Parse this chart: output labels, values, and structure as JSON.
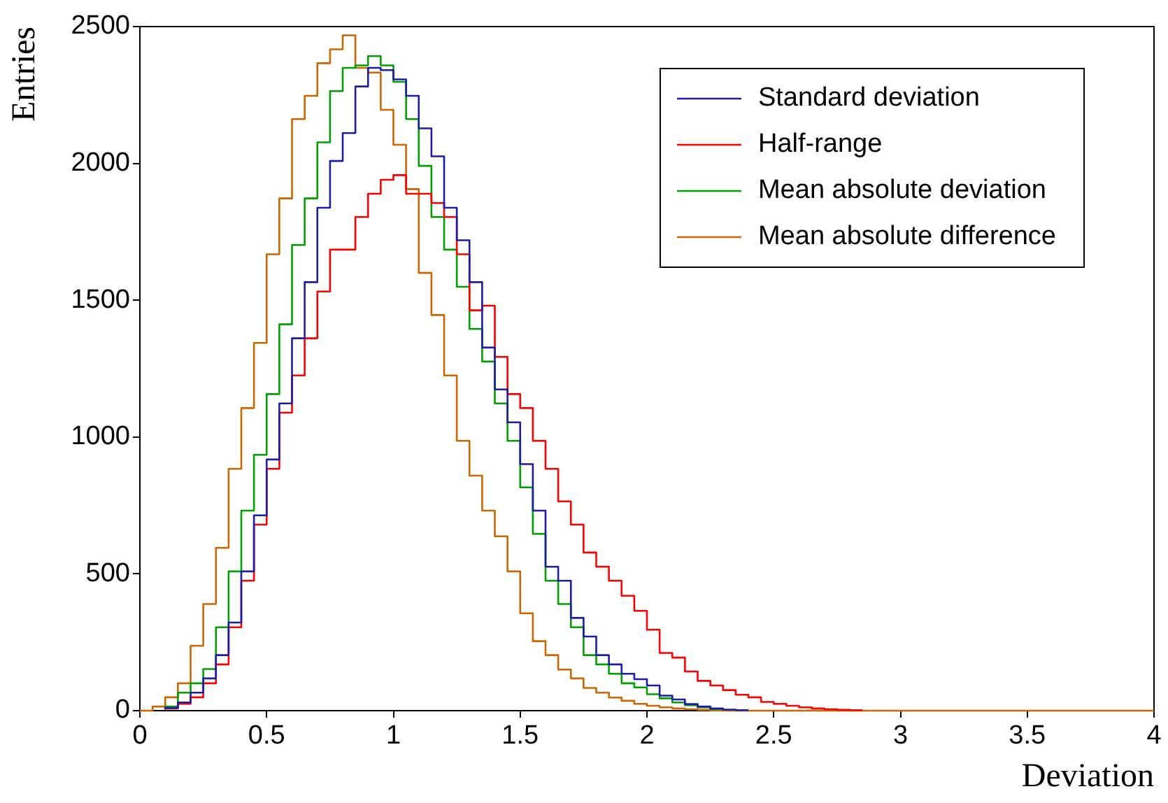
{
  "chart_data": {
    "type": "step",
    "xlabel": "Deviation",
    "ylabel": "Entries",
    "x": [
      0,
      0.05,
      0.1,
      0.15,
      0.2,
      0.25,
      0.3,
      0.35,
      0.4,
      0.45,
      0.5,
      0.55,
      0.6,
      0.65,
      0.7,
      0.75,
      0.8,
      0.85,
      0.9,
      0.95,
      1.0,
      1.05,
      1.1,
      1.15,
      1.2,
      1.25,
      1.3,
      1.35,
      1.4,
      1.45,
      1.5,
      1.55,
      1.6,
      1.65,
      1.7,
      1.75,
      1.8,
      1.85,
      1.9,
      1.95,
      2.0,
      2.05,
      2.1,
      2.15,
      2.2,
      2.25,
      2.3,
      2.35,
      2.4,
      2.45,
      2.5,
      2.55,
      2.6,
      2.65,
      2.7,
      2.75,
      2.8,
      2.85,
      2.9,
      2.95,
      3.0,
      4
    ],
    "series": [
      {
        "name": "Standard deviation",
        "color": "#1c1ca8",
        "values": [
          null,
          null,
          5,
          10,
          30,
          66,
          118,
          203,
          322,
          509,
          714,
          918,
          1123,
          1361,
          1566,
          1838,
          2009,
          2111,
          2281,
          2349,
          2341,
          2307,
          2247,
          2128,
          2026,
          1838,
          1719,
          1566,
          1327,
          1174,
          1054,
          901,
          731,
          526,
          475,
          339,
          271,
          203,
          169,
          135,
          115,
          92,
          55,
          41,
          24,
          15,
          8,
          4,
          2,
          null,
          null,
          null,
          null,
          null,
          null,
          null,
          null,
          null,
          null,
          null,
          null,
          null
        ]
      },
      {
        "name": "Half-range",
        "color": "#ff0000",
        "values": [
          null,
          null,
          3,
          8,
          25,
          49,
          100,
          169,
          305,
          475,
          680,
          884,
          1089,
          1225,
          1361,
          1532,
          1685,
          1685,
          1804,
          1889,
          1940,
          1957,
          1889,
          1889,
          1855,
          1804,
          1668,
          1463,
          1480,
          1293,
          1157,
          1106,
          986,
          884,
          765,
          680,
          578,
          526,
          475,
          420,
          365,
          296,
          211,
          194,
          143,
          109,
          92,
          75,
          58,
          49,
          32,
          25,
          18,
          12,
          8,
          5,
          3,
          2,
          null,
          null,
          null,
          null
        ]
      },
      {
        "name": "Mean absolute deviation",
        "color": "#00a000",
        "values": [
          null,
          null,
          5,
          15,
          66,
          100,
          152,
          305,
          509,
          731,
          935,
          1157,
          1412,
          1702,
          1872,
          2077,
          2264,
          2349,
          2358,
          2392,
          2358,
          2298,
          2162,
          1991,
          1804,
          1685,
          1549,
          1395,
          1276,
          1123,
          986,
          816,
          646,
          475,
          390,
          305,
          203,
          169,
          135,
          100,
          85,
          60,
          45,
          30,
          20,
          12,
          6,
          null,
          null,
          null,
          null,
          null,
          null,
          null,
          null,
          null,
          null,
          null,
          null,
          null,
          null,
          null
        ]
      },
      {
        "name": "Mean absolute difference",
        "color": "#cc6600",
        "values": [
          0,
          0,
          15,
          49,
          100,
          237,
          390,
          595,
          884,
          1106,
          1344,
          1668,
          1872,
          2162,
          2247,
          2366,
          2417,
          2468,
          2349,
          2332,
          2196,
          2068,
          1906,
          1600,
          1446,
          1225,
          986,
          859,
          731,
          637,
          509,
          356,
          254,
          203,
          150,
          118,
          83,
          66,
          48,
          36,
          25,
          18,
          12,
          8,
          5,
          3,
          1,
          0,
          0,
          0,
          0,
          0,
          0,
          0,
          0,
          0,
          0,
          0,
          0,
          0,
          0,
          0
        ]
      }
    ],
    "xlim": [
      0,
      4
    ],
    "xticks": [
      0,
      0.5,
      1,
      1.5,
      2,
      2.5,
      3,
      3.5,
      4
    ],
    "ylim": [
      0,
      2500
    ],
    "yticks": [
      0,
      500,
      1000,
      1500,
      2000,
      2500
    ],
    "grid": false,
    "legend": "top right"
  }
}
